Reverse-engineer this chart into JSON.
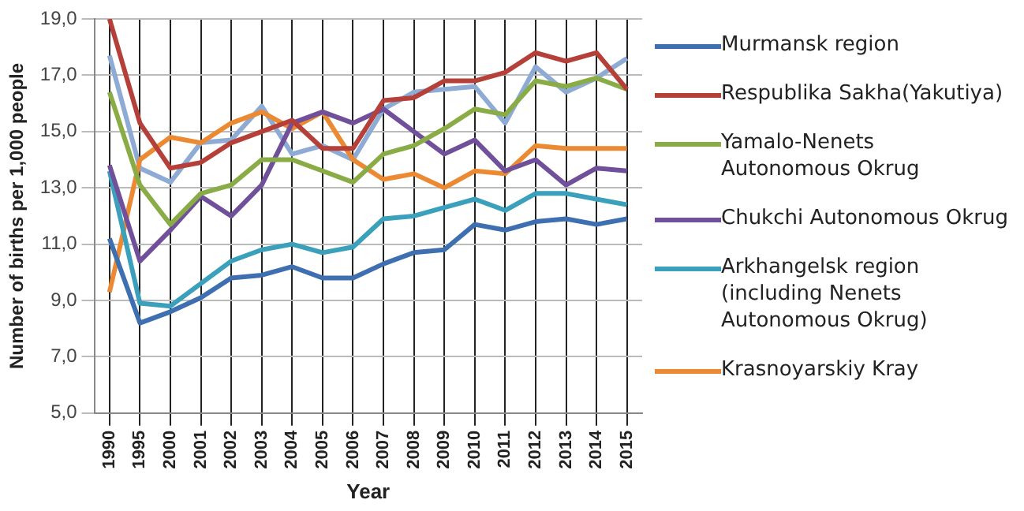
{
  "chart_data": {
    "type": "line",
    "xlabel": "Year",
    "ylabel": "Number of births per 1,000 people",
    "categories": [
      "1990",
      "1995",
      "2000",
      "2001",
      "2002",
      "2003",
      "2004",
      "2005",
      "2006",
      "2007",
      "2008",
      "2009",
      "2010",
      "2011",
      "2012",
      "2013",
      "2014",
      "2015"
    ],
    "ylim": [
      5,
      19
    ],
    "yticks": [
      {
        "value": 5,
        "label": "5,0"
      },
      {
        "value": 7,
        "label": "7,0"
      },
      {
        "value": 9,
        "label": "9,0"
      },
      {
        "value": 11,
        "label": "11,0"
      },
      {
        "value": 13,
        "label": "13,0"
      },
      {
        "value": 15,
        "label": "15,0"
      },
      {
        "value": 17,
        "label": "17,0"
      },
      {
        "value": 19,
        "label": "19,0"
      }
    ],
    "grid": true,
    "legend": "right",
    "marker": "none",
    "line_style": "solid",
    "series": [
      {
        "name": "Murmansk region",
        "color": "#3e6fb0",
        "values": [
          11.2,
          8.2,
          8.6,
          9.1,
          9.8,
          9.9,
          10.2,
          9.8,
          9.8,
          10.3,
          10.7,
          10.8,
          11.7,
          11.5,
          11.8,
          11.9,
          11.7,
          11.9
        ]
      },
      {
        "name": "Respublika Sakha(Yakutiya)",
        "color": "#b5403a",
        "values": [
          19.0,
          15.3,
          13.7,
          13.9,
          14.6,
          15.0,
          15.4,
          14.4,
          14.4,
          16.1,
          16.2,
          16.8,
          16.8,
          17.1,
          17.8,
          17.5,
          17.8,
          16.5
        ]
      },
      {
        "name": "Yamalo-Nenets Autonomous Okrug",
        "color": "#8aac46",
        "values": [
          16.4,
          13.1,
          11.7,
          12.8,
          13.1,
          14.0,
          14.0,
          13.6,
          13.2,
          14.2,
          14.5,
          15.1,
          15.8,
          15.6,
          16.8,
          16.6,
          16.9,
          16.5
        ]
      },
      {
        "name": "Chukchi Autonomous Okrug",
        "color": "#70509a",
        "values": [
          13.8,
          10.4,
          11.5,
          12.7,
          12.0,
          13.1,
          15.3,
          15.7,
          15.3,
          15.8,
          15.0,
          14.2,
          14.7,
          13.6,
          14.0,
          13.1,
          13.7,
          13.6
        ]
      },
      {
        "name": "Arkhangelsk region (including Nenets Autonomous Okrug)",
        "color": "#3aa0bb",
        "values": [
          13.6,
          8.9,
          8.8,
          9.6,
          10.4,
          10.8,
          11.0,
          10.7,
          10.9,
          11.9,
          12.0,
          12.3,
          12.6,
          12.2,
          12.8,
          12.8,
          12.6,
          12.4
        ]
      },
      {
        "name": "Krasnoyarskiy Kray",
        "color": "#ec8a33",
        "values": [
          9.3,
          14.0,
          14.8,
          14.6,
          15.3,
          15.7,
          15.1,
          15.7,
          14.0,
          13.3,
          13.5,
          13.0,
          13.6,
          13.5,
          14.5,
          14.4,
          14.4,
          14.4
        ]
      },
      {
        "color": "#8eabd6",
        "values": [
          17.7,
          13.7,
          13.2,
          14.6,
          14.7,
          15.9,
          14.2,
          14.5,
          14.0,
          15.8,
          16.4,
          16.5,
          16.6,
          15.3,
          17.3,
          16.4,
          16.9,
          17.6
        ]
      }
    ]
  }
}
